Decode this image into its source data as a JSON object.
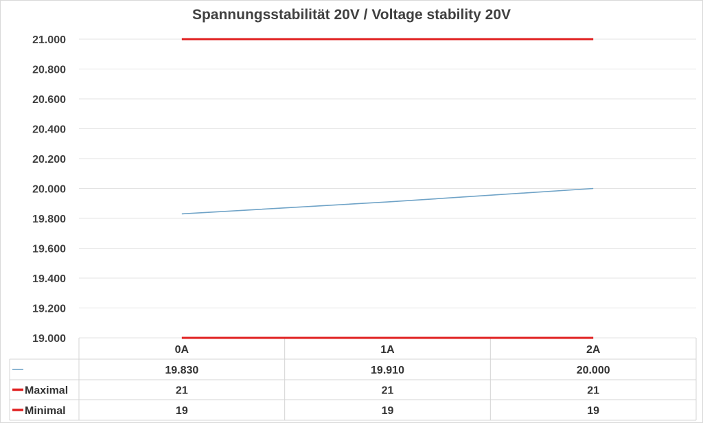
{
  "chart_data": {
    "type": "line",
    "title": "Spannungsstabilität 20V / Voltage stability 20V",
    "categories": [
      "0A",
      "1A",
      "2A"
    ],
    "ylim": [
      19.0,
      21.0
    ],
    "yticks": [
      "19.000",
      "19.200",
      "19.400",
      "19.600",
      "19.800",
      "20.000",
      "20.200",
      "20.400",
      "20.600",
      "20.800",
      "21.000"
    ],
    "grid": true,
    "legend": "data-table-bottom",
    "series": [
      {
        "name": "",
        "values": [
          19.83,
          19.91,
          20.0
        ],
        "labels": [
          "19.830",
          "19.910",
          "20.000"
        ],
        "color": "#6fa3c7"
      },
      {
        "name": "Maximal",
        "values": [
          21,
          21,
          21
        ],
        "labels": [
          "21",
          "21",
          "21"
        ],
        "color": "#e02020"
      },
      {
        "name": "Minimal",
        "values": [
          19,
          19,
          19
        ],
        "labels": [
          "19",
          "19",
          "19"
        ],
        "color": "#e02020"
      }
    ]
  }
}
